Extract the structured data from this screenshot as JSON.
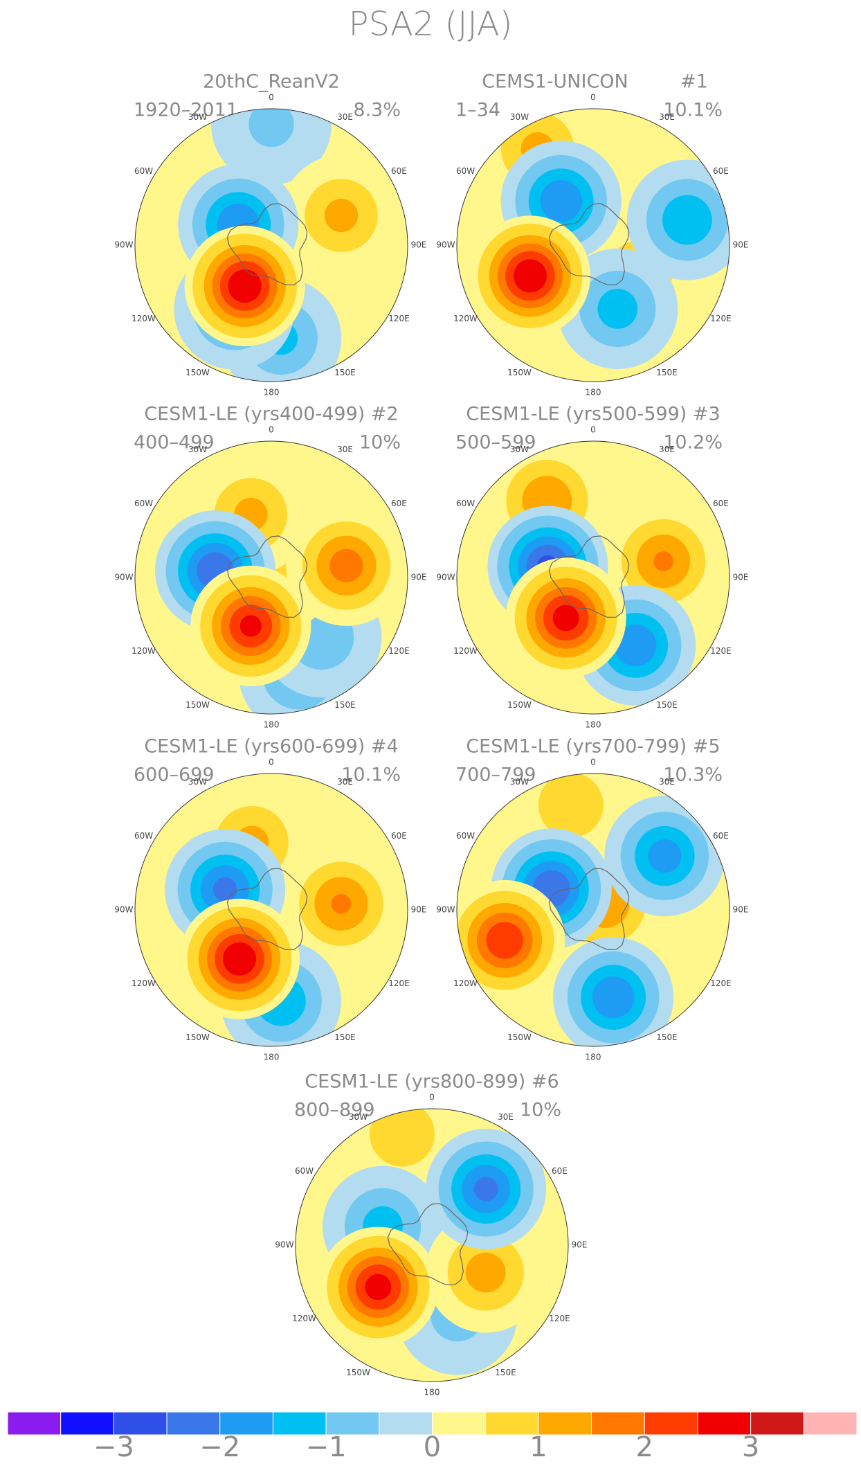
{
  "title": "PSA2 (JJA)",
  "lon_labels": [
    "0",
    "30E",
    "60E",
    "90E",
    "120E",
    "150E",
    "180",
    "150W",
    "120W",
    "90W",
    "60W",
    "30W"
  ],
  "panels": [
    {
      "title": "20thC_ReanV2",
      "period": "1920–2011",
      "variance": "8.3%",
      "anomalies": [
        {
          "lon": 0,
          "lat": -28,
          "value": -0.7
        },
        {
          "lon": 67,
          "lat": -51,
          "value": 1.2
        },
        {
          "lon": 174,
          "lat": -42,
          "value": -1.2
        },
        {
          "lon": -150,
          "lat": -52,
          "value": -1.5
        },
        {
          "lon": -58,
          "lat": -70,
          "value": -2
        },
        {
          "lon": -147,
          "lat": -65,
          "value": 3
        }
      ]
    },
    {
      "title": "CEMS1-UNICON",
      "tag": "#1",
      "period": "1–34",
      "variance": "10.1%",
      "anomalies": [
        {
          "lon": -30,
          "lat": -33,
          "value": 1.2
        },
        {
          "lon": 120,
          "lat": -62,
          "value": 1
        },
        {
          "lon": 75,
          "lat": -40,
          "value": -1.5
        },
        {
          "lon": 159,
          "lat": -55,
          "value": -1.3
        },
        {
          "lon": -36,
          "lat": -62,
          "value": -2
        },
        {
          "lon": -116,
          "lat": -54,
          "value": 3
        }
      ]
    },
    {
      "title": "CESM1-LE (yrs400-499) #2",
      "period": "400–499",
      "variance": "10%",
      "anomalies": [
        {
          "lon": 164,
          "lat": -39,
          "value": -1.2
        },
        {
          "lon": 140,
          "lat": -50,
          "value": -1
        },
        {
          "lon": 40,
          "lat": -85,
          "value": 1
        },
        {
          "lon": -18,
          "lat": -56,
          "value": 1.2
        },
        {
          "lon": 81,
          "lat": -51,
          "value": 1.8
        },
        {
          "lon": -83,
          "lat": -61,
          "value": -2.5
        },
        {
          "lon": -157,
          "lat": -63,
          "value": 2.7
        }
      ]
    },
    {
      "title": "CESM1-LE (yrs500-599) #3",
      "period": "500–599",
      "variance": "10.2%",
      "anomalies": [
        {
          "lon": -31,
          "lat": -44,
          "value": 1.5
        },
        {
          "lon": 77,
          "lat": -53,
          "value": 1.6
        },
        {
          "lon": 148,
          "lat": -49,
          "value": -2
        },
        {
          "lon": -76,
          "lat": -66,
          "value": -2.7
        },
        {
          "lon": -146,
          "lat": -65,
          "value": 2.8
        }
      ]
    },
    {
      "title": "CESM1-LE (yrs600-699) #4",
      "period": "600–699",
      "variance": "10.1%",
      "anomalies": [
        {
          "lon": -16,
          "lat": -54,
          "value": 1.2
        },
        {
          "lon": 85,
          "lat": -54,
          "value": 1.6
        },
        {
          "lon": 174,
          "lat": -43,
          "value": -1.5
        },
        {
          "lon": -66,
          "lat": -64,
          "value": -2.2
        },
        {
          "lon": -147,
          "lat": -60,
          "value": 3
        }
      ]
    },
    {
      "title": "CESM1-LE (yrs700-799) #5",
      "period": "700–799",
      "variance": "10.3%",
      "anomalies": [
        {
          "lon": -12,
          "lat": -35,
          "value": 1
        },
        {
          "lon": 60,
          "lat": -83,
          "value": 1.5
        },
        {
          "lon": 53,
          "lat": -44,
          "value": -1.8
        },
        {
          "lon": 167,
          "lat": -44,
          "value": -2
        },
        {
          "lon": -63,
          "lat": -66,
          "value": -2.5
        },
        {
          "lon": -109,
          "lat": -42,
          "value": 2.5
        }
      ]
    },
    {
      "title": "CESM1-LE (yrs800-899) #6",
      "period": "800–899",
      "variance": "10%",
      "anomalies": [
        {
          "lon": -15,
          "lat": -31,
          "value": 1
        },
        {
          "lon": 160,
          "lat": -52,
          "value": -0.8
        },
        {
          "lon": -69,
          "lat": -63,
          "value": -1.3
        },
        {
          "lon": 117,
          "lat": -59,
          "value": 1.3
        },
        {
          "lon": 44,
          "lat": -50,
          "value": -2.2
        },
        {
          "lon": -128,
          "lat": -55,
          "value": 2.8
        }
      ]
    }
  ],
  "colorbar": {
    "xlim": [
      -4,
      4
    ],
    "colors": [
      "#8a1cf0",
      "#1010ff",
      "#2f50e8",
      "#3a78ea",
      "#1e9bf2",
      "#00c0f2",
      "#72c8f0",
      "#b4dcf0",
      "#fff68c",
      "#ffd830",
      "#ffa800",
      "#ff7800",
      "#ff3c00",
      "#f00000",
      "#d01818",
      "#ffb4b4"
    ],
    "xticks": [
      {
        "value": -3,
        "label": "−3"
      },
      {
        "value": -2,
        "label": "−2"
      },
      {
        "value": -1,
        "label": "−1"
      },
      0,
      1,
      2,
      3
    ]
  }
}
